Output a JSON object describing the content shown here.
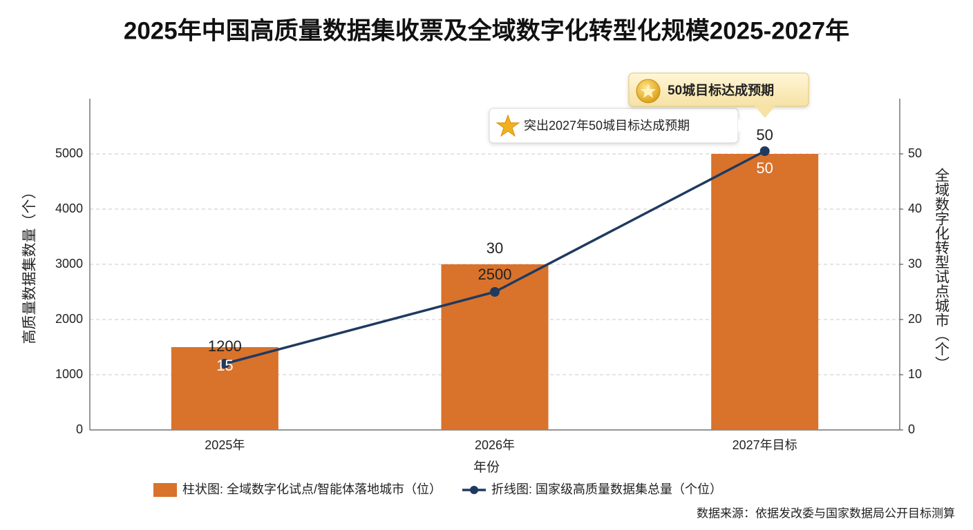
{
  "chart_data": {
    "type": "bar-line",
    "title": "2025年中国高质量数据集收票及全域数字化转型化规模2025-2027年",
    "x_label": "年份",
    "y_label": "高质量数据集数量（个）",
    "y2_label": "全域数字化转型试点城市（个）",
    "categories": [
      "2025年",
      "2026年",
      "2027年目标"
    ],
    "series": [
      {
        "name": "柱状图: 全域数字化试点/智能体落地城市（位）",
        "type": "bar",
        "color": "#d9722b",
        "axis": "y2",
        "values": [
          15,
          30,
          50
        ]
      },
      {
        "name": "折线图: 国家级高质量数据集总量（个位）",
        "type": "line",
        "color": "#1f3a5f",
        "values": [
          1200,
          2500,
          5050
        ]
      }
    ],
    "ylim": [
      0,
      6000
    ],
    "yticks": [
      0,
      1000,
      2000,
      3000,
      4000,
      5000
    ],
    "y2lim": [
      0,
      60
    ],
    "y2ticks": [
      0,
      10,
      20,
      30,
      40,
      50
    ],
    "grid": true,
    "legend": "bottom",
    "annotations": [
      "突出2027年50城目标达成预期",
      "50城目标达成预期",
      "50"
    ],
    "source": "数据来源：依据发改委与国家数据局公开目标测算"
  }
}
